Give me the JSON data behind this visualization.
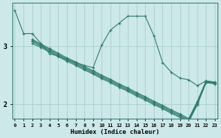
{
  "xlabel": "Humidex (Indice chaleur)",
  "bg_color": "#cce8e8",
  "line_color": "#2e7d6e",
  "grid_color": "#aad0d0",
  "x_ticks": [
    0,
    1,
    2,
    3,
    4,
    5,
    6,
    7,
    8,
    9,
    10,
    11,
    12,
    13,
    14,
    15,
    16,
    17,
    18,
    19,
    20,
    21,
    22,
    23
  ],
  "y_ticks": [
    2,
    3
  ],
  "xlim": [
    -0.3,
    23.3
  ],
  "ylim": [
    1.75,
    3.75
  ],
  "lines": [
    {
      "x": [
        0,
        1,
        2,
        3,
        4,
        5,
        6,
        7,
        8,
        9,
        10,
        11,
        12,
        13,
        14,
        15,
        16,
        17,
        18,
        19,
        20,
        21,
        22,
        23
      ],
      "y": [
        3.62,
        3.22,
        3.22,
        3.05,
        2.87,
        2.83,
        2.77,
        2.72,
        2.67,
        2.63,
        3.02,
        3.28,
        3.4,
        3.52,
        3.52,
        3.52,
        3.18,
        2.72,
        2.55,
        2.45,
        2.42,
        2.32,
        2.4,
        2.38
      ]
    },
    {
      "x": [
        2,
        3,
        4,
        5,
        6,
        7,
        8,
        9,
        10,
        11,
        12,
        13,
        14,
        15,
        16,
        17,
        18,
        19,
        20,
        21,
        22,
        23
      ],
      "y": [
        3.05,
        2.98,
        2.9,
        2.82,
        2.74,
        2.67,
        2.59,
        2.52,
        2.44,
        2.37,
        2.29,
        2.22,
        2.14,
        2.07,
        1.99,
        1.92,
        1.84,
        1.77,
        1.69,
        1.99,
        2.37,
        2.35
      ]
    },
    {
      "x": [
        2,
        3,
        4,
        5,
        6,
        7,
        8,
        9,
        10,
        11,
        12,
        13,
        14,
        15,
        16,
        17,
        18,
        19,
        20,
        21,
        22,
        23
      ],
      "y": [
        3.08,
        3.0,
        2.92,
        2.84,
        2.76,
        2.69,
        2.61,
        2.54,
        2.46,
        2.39,
        2.31,
        2.24,
        2.16,
        2.09,
        2.01,
        1.94,
        1.86,
        1.79,
        1.71,
        2.01,
        2.38,
        2.36
      ]
    },
    {
      "x": [
        2,
        3,
        4,
        5,
        6,
        7,
        8,
        9,
        10,
        11,
        12,
        13,
        14,
        15,
        16,
        17,
        18,
        19,
        20,
        21,
        22,
        23
      ],
      "y": [
        3.1,
        3.02,
        2.94,
        2.86,
        2.78,
        2.71,
        2.63,
        2.56,
        2.48,
        2.41,
        2.33,
        2.26,
        2.18,
        2.11,
        2.03,
        1.96,
        1.88,
        1.81,
        1.73,
        2.03,
        2.39,
        2.37
      ]
    },
    {
      "x": [
        2,
        3,
        4,
        5,
        6,
        7,
        8,
        9,
        10,
        11,
        12,
        13,
        14,
        15,
        16,
        17,
        18,
        19,
        20,
        21,
        22,
        23
      ],
      "y": [
        3.12,
        3.04,
        2.96,
        2.88,
        2.8,
        2.73,
        2.65,
        2.58,
        2.5,
        2.43,
        2.35,
        2.28,
        2.2,
        2.13,
        2.05,
        1.98,
        1.9,
        1.83,
        1.75,
        2.05,
        2.4,
        2.38
      ]
    }
  ]
}
